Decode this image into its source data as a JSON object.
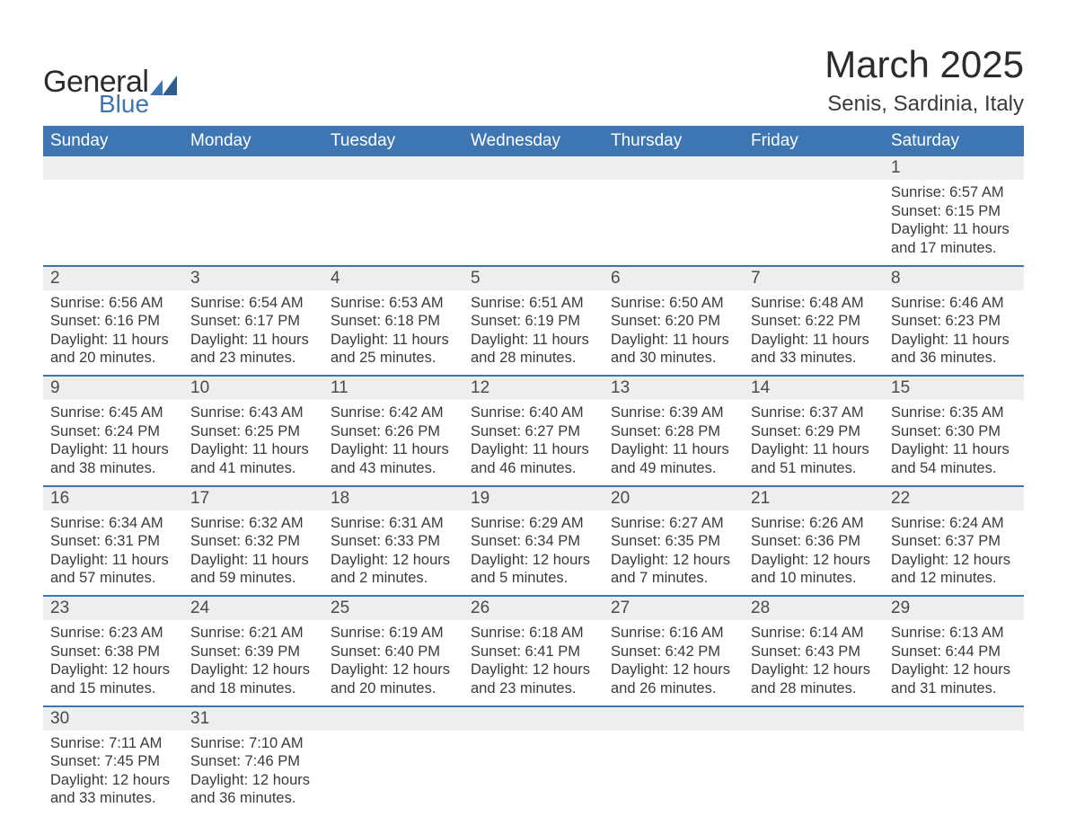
{
  "brand": {
    "word1": "General",
    "word2": "Blue",
    "accent_color": "#3e76b3"
  },
  "title": "March 2025",
  "location": "Senis, Sardinia, Italy",
  "colors": {
    "header_bg": "#3e76b3",
    "header_text": "#ffffff",
    "daynum_bg": "#eeeeee",
    "row_divider": "#3e76b3",
    "body_text": "#3a3a3a",
    "page_bg": "#ffffff"
  },
  "typography": {
    "title_fontsize": 42,
    "location_fontsize": 24,
    "weekday_fontsize": 19,
    "daynum_fontsize": 19,
    "detail_fontsize": 16.5,
    "font_family": "Arial"
  },
  "weekdays": [
    "Sunday",
    "Monday",
    "Tuesday",
    "Wednesday",
    "Thursday",
    "Friday",
    "Saturday"
  ],
  "labels": {
    "sunrise": "Sunrise: ",
    "sunset": "Sunset: ",
    "daylight": "Daylight: "
  },
  "weeks": [
    [
      null,
      null,
      null,
      null,
      null,
      null,
      {
        "n": "1",
        "sr": "6:57 AM",
        "ss": "6:15 PM",
        "dl": "11 hours and 17 minutes."
      }
    ],
    [
      {
        "n": "2",
        "sr": "6:56 AM",
        "ss": "6:16 PM",
        "dl": "11 hours and 20 minutes."
      },
      {
        "n": "3",
        "sr": "6:54 AM",
        "ss": "6:17 PM",
        "dl": "11 hours and 23 minutes."
      },
      {
        "n": "4",
        "sr": "6:53 AM",
        "ss": "6:18 PM",
        "dl": "11 hours and 25 minutes."
      },
      {
        "n": "5",
        "sr": "6:51 AM",
        "ss": "6:19 PM",
        "dl": "11 hours and 28 minutes."
      },
      {
        "n": "6",
        "sr": "6:50 AM",
        "ss": "6:20 PM",
        "dl": "11 hours and 30 minutes."
      },
      {
        "n": "7",
        "sr": "6:48 AM",
        "ss": "6:22 PM",
        "dl": "11 hours and 33 minutes."
      },
      {
        "n": "8",
        "sr": "6:46 AM",
        "ss": "6:23 PM",
        "dl": "11 hours and 36 minutes."
      }
    ],
    [
      {
        "n": "9",
        "sr": "6:45 AM",
        "ss": "6:24 PM",
        "dl": "11 hours and 38 minutes."
      },
      {
        "n": "10",
        "sr": "6:43 AM",
        "ss": "6:25 PM",
        "dl": "11 hours and 41 minutes."
      },
      {
        "n": "11",
        "sr": "6:42 AM",
        "ss": "6:26 PM",
        "dl": "11 hours and 43 minutes."
      },
      {
        "n": "12",
        "sr": "6:40 AM",
        "ss": "6:27 PM",
        "dl": "11 hours and 46 minutes."
      },
      {
        "n": "13",
        "sr": "6:39 AM",
        "ss": "6:28 PM",
        "dl": "11 hours and 49 minutes."
      },
      {
        "n": "14",
        "sr": "6:37 AM",
        "ss": "6:29 PM",
        "dl": "11 hours and 51 minutes."
      },
      {
        "n": "15",
        "sr": "6:35 AM",
        "ss": "6:30 PM",
        "dl": "11 hours and 54 minutes."
      }
    ],
    [
      {
        "n": "16",
        "sr": "6:34 AM",
        "ss": "6:31 PM",
        "dl": "11 hours and 57 minutes."
      },
      {
        "n": "17",
        "sr": "6:32 AM",
        "ss": "6:32 PM",
        "dl": "11 hours and 59 minutes."
      },
      {
        "n": "18",
        "sr": "6:31 AM",
        "ss": "6:33 PM",
        "dl": "12 hours and 2 minutes."
      },
      {
        "n": "19",
        "sr": "6:29 AM",
        "ss": "6:34 PM",
        "dl": "12 hours and 5 minutes."
      },
      {
        "n": "20",
        "sr": "6:27 AM",
        "ss": "6:35 PM",
        "dl": "12 hours and 7 minutes."
      },
      {
        "n": "21",
        "sr": "6:26 AM",
        "ss": "6:36 PM",
        "dl": "12 hours and 10 minutes."
      },
      {
        "n": "22",
        "sr": "6:24 AM",
        "ss": "6:37 PM",
        "dl": "12 hours and 12 minutes."
      }
    ],
    [
      {
        "n": "23",
        "sr": "6:23 AM",
        "ss": "6:38 PM",
        "dl": "12 hours and 15 minutes."
      },
      {
        "n": "24",
        "sr": "6:21 AM",
        "ss": "6:39 PM",
        "dl": "12 hours and 18 minutes."
      },
      {
        "n": "25",
        "sr": "6:19 AM",
        "ss": "6:40 PM",
        "dl": "12 hours and 20 minutes."
      },
      {
        "n": "26",
        "sr": "6:18 AM",
        "ss": "6:41 PM",
        "dl": "12 hours and 23 minutes."
      },
      {
        "n": "27",
        "sr": "6:16 AM",
        "ss": "6:42 PM",
        "dl": "12 hours and 26 minutes."
      },
      {
        "n": "28",
        "sr": "6:14 AM",
        "ss": "6:43 PM",
        "dl": "12 hours and 28 minutes."
      },
      {
        "n": "29",
        "sr": "6:13 AM",
        "ss": "6:44 PM",
        "dl": "12 hours and 31 minutes."
      }
    ],
    [
      {
        "n": "30",
        "sr": "7:11 AM",
        "ss": "7:45 PM",
        "dl": "12 hours and 33 minutes."
      },
      {
        "n": "31",
        "sr": "7:10 AM",
        "ss": "7:46 PM",
        "dl": "12 hours and 36 minutes."
      },
      null,
      null,
      null,
      null,
      null
    ]
  ]
}
